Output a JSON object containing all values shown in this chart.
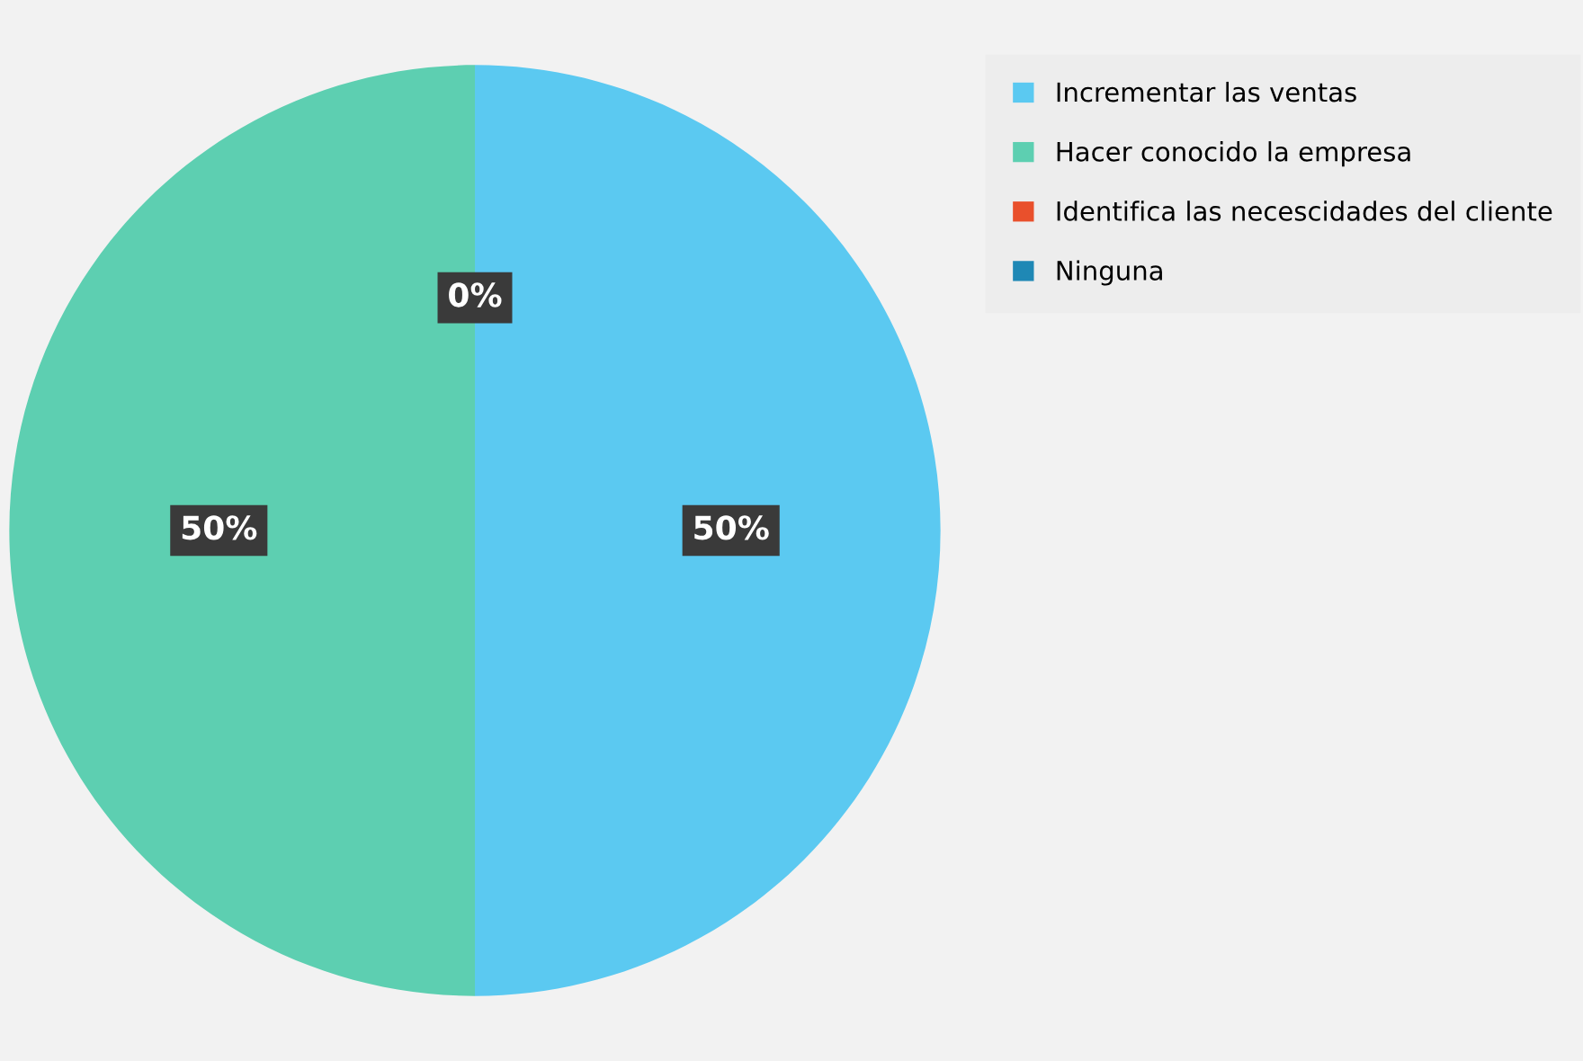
{
  "chart_data": {
    "type": "pie",
    "categories": [
      "Incrementar las ventas",
      "Hacer conocido la empresa",
      "Identifica las necescidades del cliente",
      "Ninguna"
    ],
    "values": [
      50,
      50,
      0,
      0
    ],
    "colors": [
      "#5bc9f1",
      "#5dcfb1",
      "#e9502c",
      "#1f88b5"
    ],
    "value_labels": [
      "50%",
      "50%",
      "0%",
      null
    ],
    "legend": "right"
  }
}
